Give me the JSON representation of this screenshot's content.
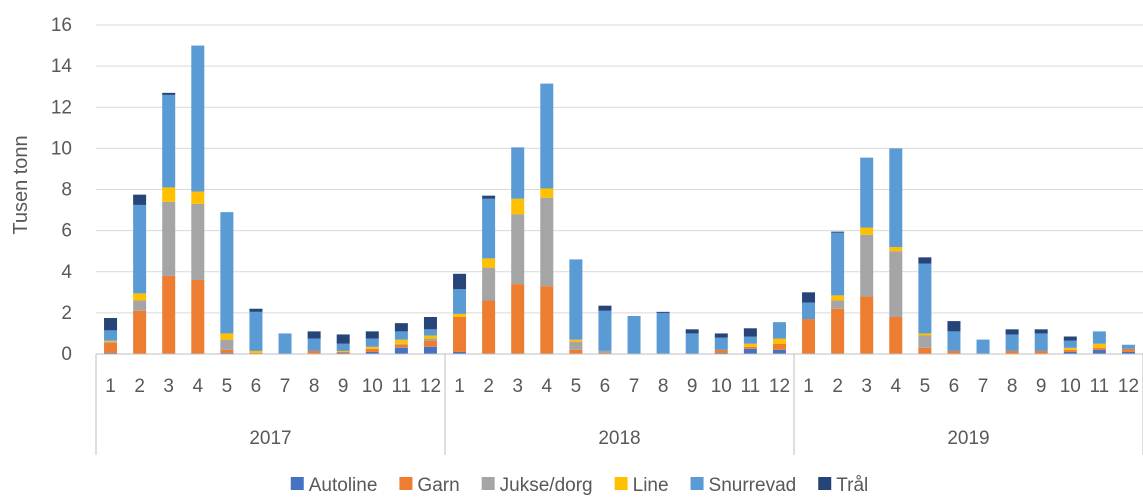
{
  "chart_data": {
    "type": "bar",
    "stacked": true,
    "ylabel": "Tusen tonn",
    "xlabel": "",
    "ylim": [
      0,
      16
    ],
    "yticks": [
      0,
      2,
      4,
      6,
      8,
      10,
      12,
      14,
      16
    ],
    "grid": true,
    "legend_position": "bottom",
    "years": [
      "2017",
      "2018",
      "2019"
    ],
    "months": [
      "1",
      "2",
      "3",
      "4",
      "5",
      "6",
      "7",
      "8",
      "9",
      "10",
      "11",
      "12"
    ],
    "series": [
      {
        "name": "Autoline",
        "color": "#4472C4",
        "values": [
          0.05,
          0.0,
          0.0,
          0.0,
          0.05,
          0.0,
          0.0,
          0.0,
          0.05,
          0.1,
          0.3,
          0.35,
          0.1,
          0.0,
          0.0,
          0.0,
          0.0,
          0.0,
          0.0,
          0.0,
          0.0,
          0.05,
          0.25,
          0.2,
          0.0,
          0.0,
          0.0,
          0.0,
          0.0,
          0.0,
          0.0,
          0.0,
          0.0,
          0.1,
          0.2,
          0.1
        ]
      },
      {
        "name": "Garn",
        "color": "#ED7D31",
        "values": [
          0.5,
          2.1,
          3.8,
          3.6,
          0.15,
          0.05,
          0.0,
          0.15,
          0.05,
          0.15,
          0.15,
          0.3,
          1.7,
          2.6,
          3.4,
          3.3,
          0.2,
          0.05,
          0.0,
          0.0,
          0.0,
          0.15,
          0.1,
          0.3,
          1.7,
          2.2,
          2.8,
          1.8,
          0.3,
          0.15,
          0.0,
          0.15,
          0.15,
          0.1,
          0.1,
          0.15
        ]
      },
      {
        "name": "Jukse/dorg",
        "color": "#A5A5A5",
        "values": [
          0.05,
          0.5,
          3.6,
          3.7,
          0.5,
          0.0,
          0.0,
          0.0,
          0.0,
          0.0,
          0.05,
          0.1,
          0.0,
          1.6,
          3.4,
          4.3,
          0.4,
          0.1,
          0.0,
          0.0,
          0.0,
          0.0,
          0.0,
          0.0,
          0.0,
          0.4,
          3.0,
          3.2,
          0.6,
          0.0,
          0.0,
          0.0,
          0.0,
          0.0,
          0.0,
          0.0
        ]
      },
      {
        "name": "Line",
        "color": "#FFC000",
        "values": [
          0.05,
          0.35,
          0.7,
          0.6,
          0.3,
          0.1,
          0.0,
          0.0,
          0.05,
          0.1,
          0.2,
          0.15,
          0.15,
          0.45,
          0.75,
          0.45,
          0.1,
          0.0,
          0.0,
          0.0,
          0.0,
          0.0,
          0.15,
          0.25,
          0.0,
          0.25,
          0.35,
          0.2,
          0.1,
          0.0,
          0.0,
          0.0,
          0.0,
          0.1,
          0.2,
          0.0
        ]
      },
      {
        "name": "Snurrevad",
        "color": "#5B9BD5",
        "values": [
          0.5,
          4.3,
          4.5,
          7.1,
          5.9,
          1.9,
          1.0,
          0.6,
          0.35,
          0.4,
          0.4,
          0.3,
          1.2,
          2.9,
          2.5,
          5.1,
          3.9,
          1.95,
          1.85,
          2.0,
          1.0,
          0.6,
          0.35,
          0.8,
          0.8,
          3.05,
          3.4,
          4.8,
          3.4,
          0.95,
          0.7,
          0.8,
          0.85,
          0.35,
          0.6,
          0.2
        ]
      },
      {
        "name": "Trål",
        "color": "#264478",
        "values": [
          0.6,
          0.5,
          0.1,
          0.0,
          0.0,
          0.15,
          0.0,
          0.35,
          0.45,
          0.35,
          0.4,
          0.6,
          0.75,
          0.15,
          0.0,
          0.0,
          0.0,
          0.25,
          0.0,
          0.05,
          0.2,
          0.2,
          0.4,
          0.0,
          0.5,
          0.05,
          0.0,
          0.0,
          0.3,
          0.5,
          0.0,
          0.25,
          0.2,
          0.2,
          0.0,
          0.0
        ]
      }
    ]
  }
}
